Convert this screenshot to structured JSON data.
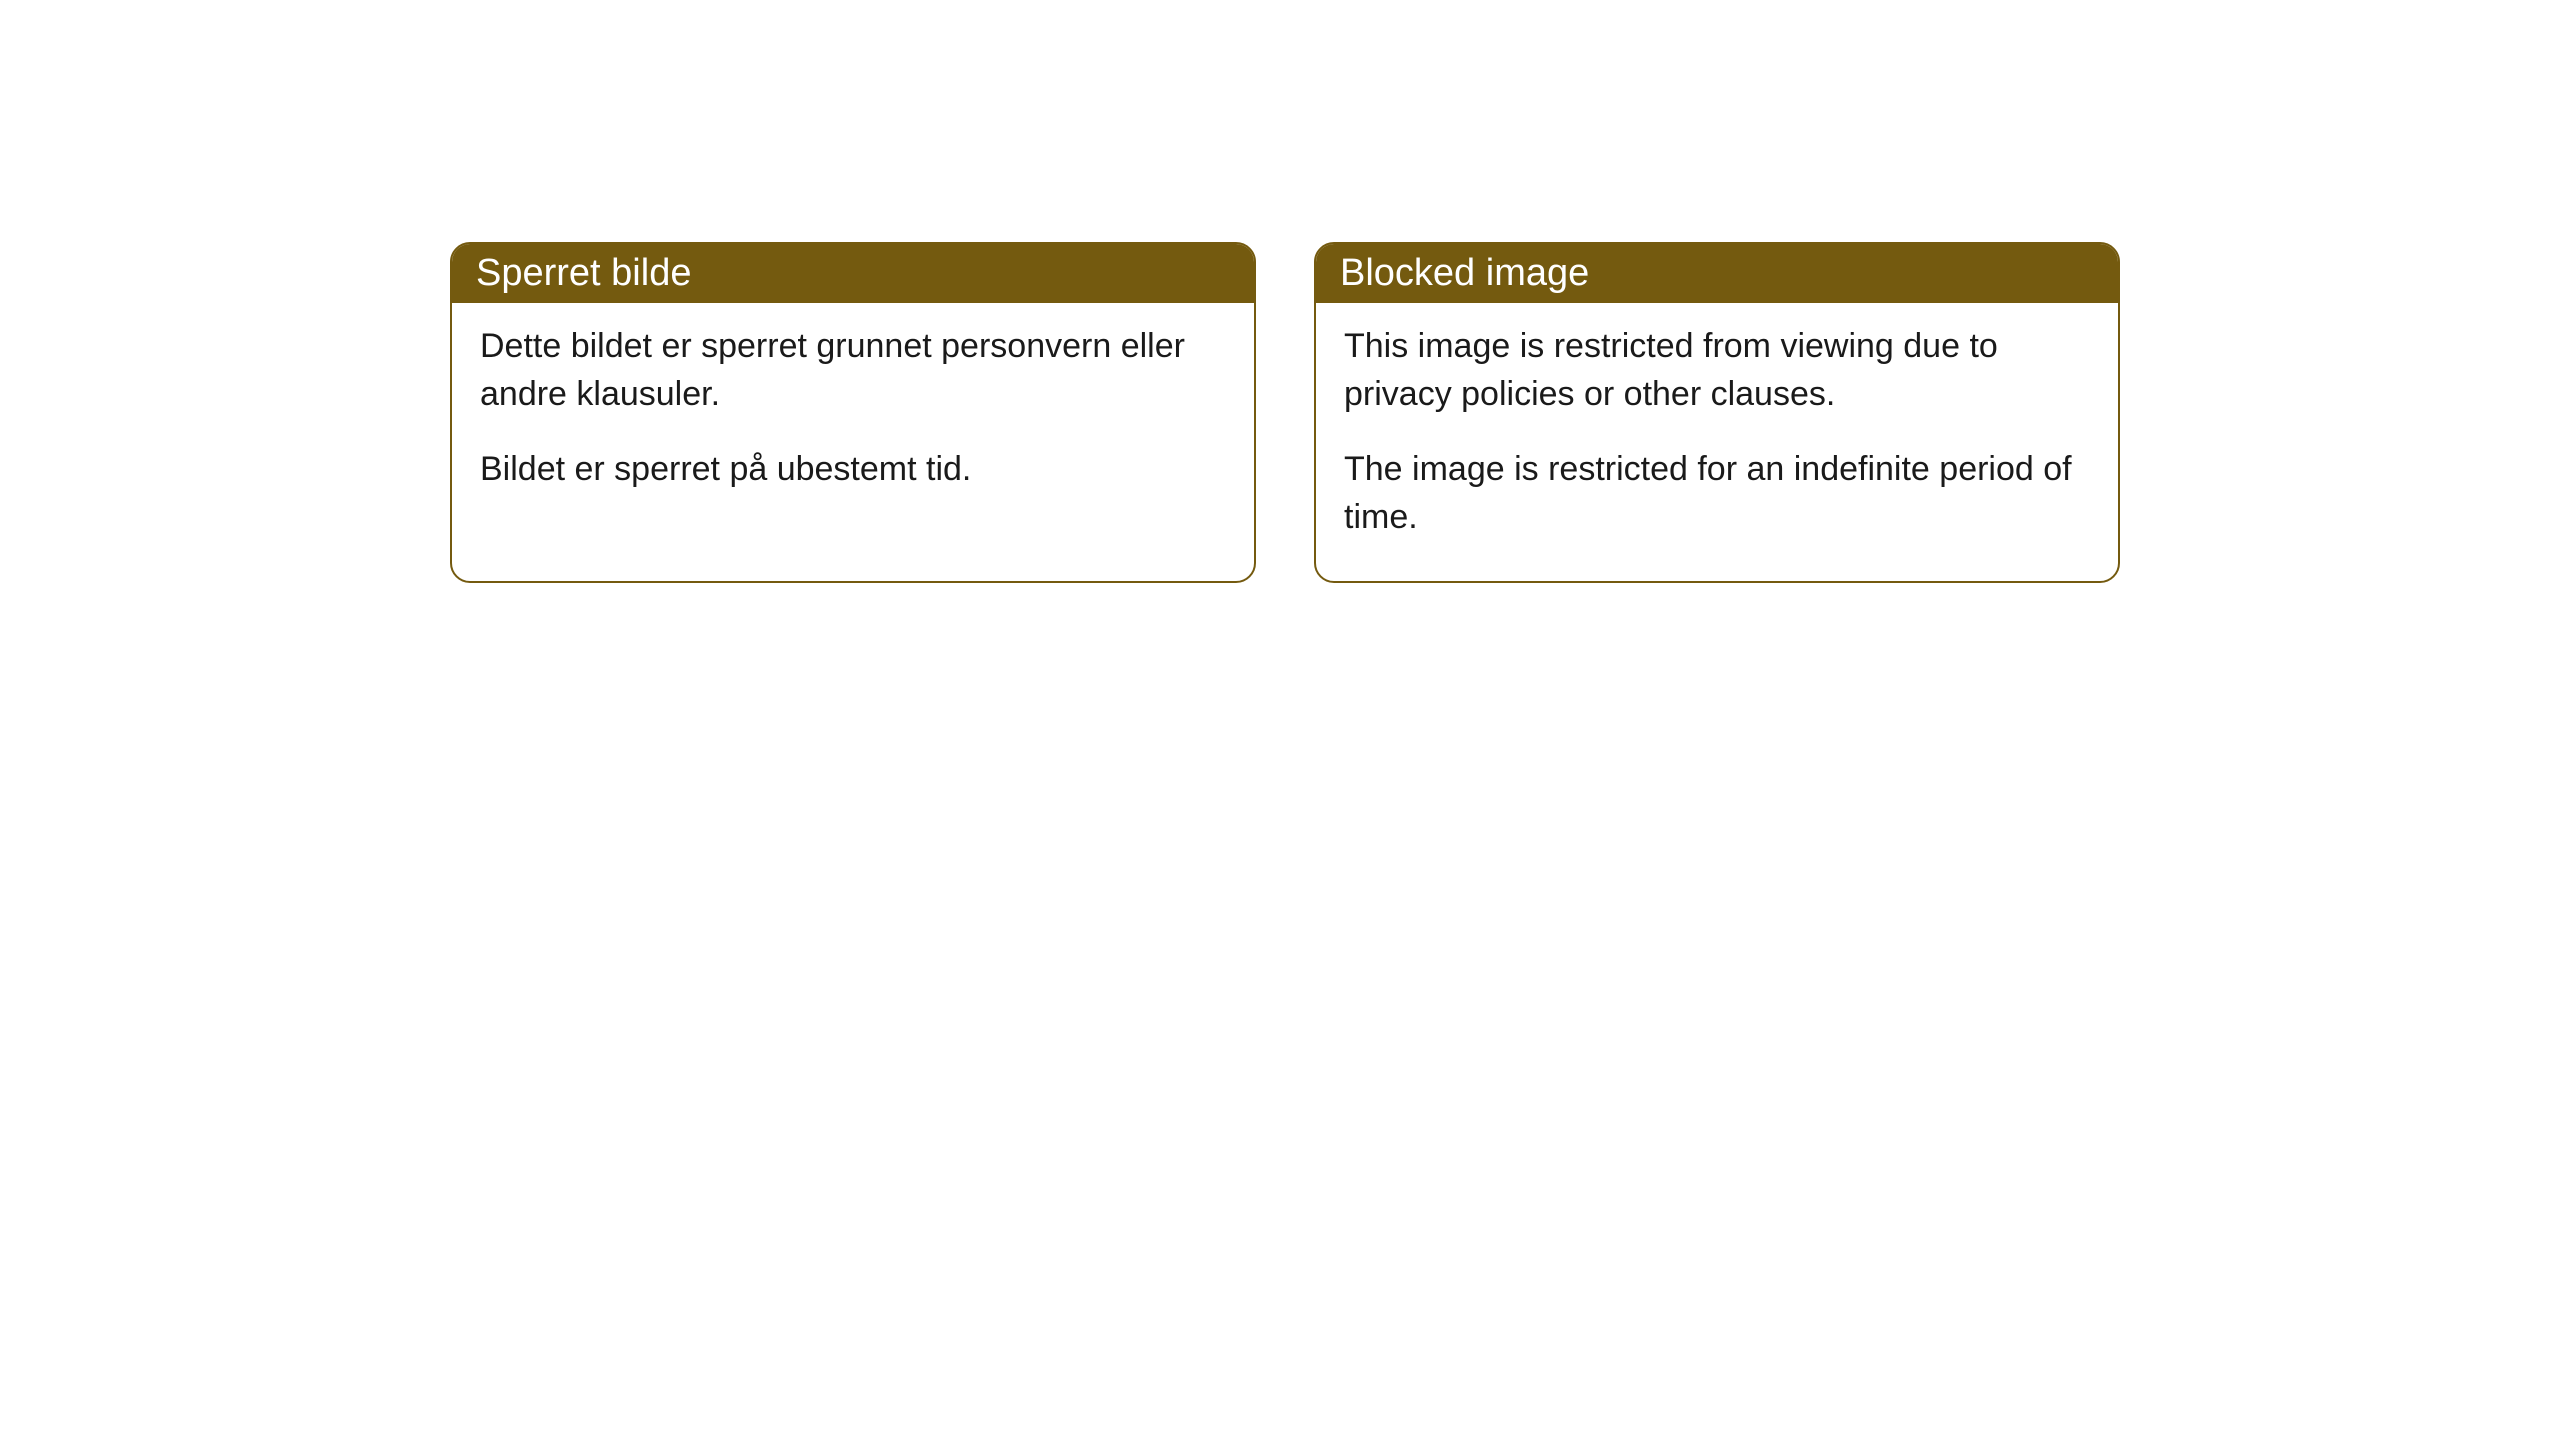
{
  "cards": [
    {
      "title": "Sperret bilde",
      "paragraph1": "Dette bildet er sperret grunnet personvern eller andre klausuler.",
      "paragraph2": "Bildet er sperret på ubestemt tid."
    },
    {
      "title": "Blocked image",
      "paragraph1": "This image is restricted from viewing due to privacy policies or other clauses.",
      "paragraph2": "The image is restricted for an indefinite period of time."
    }
  ],
  "colors": {
    "header_bg": "#745a0f",
    "header_text": "#ffffff",
    "border": "#745a0f",
    "body_text": "#1a1a1a",
    "card_bg": "#ffffff",
    "page_bg": "#ffffff"
  }
}
